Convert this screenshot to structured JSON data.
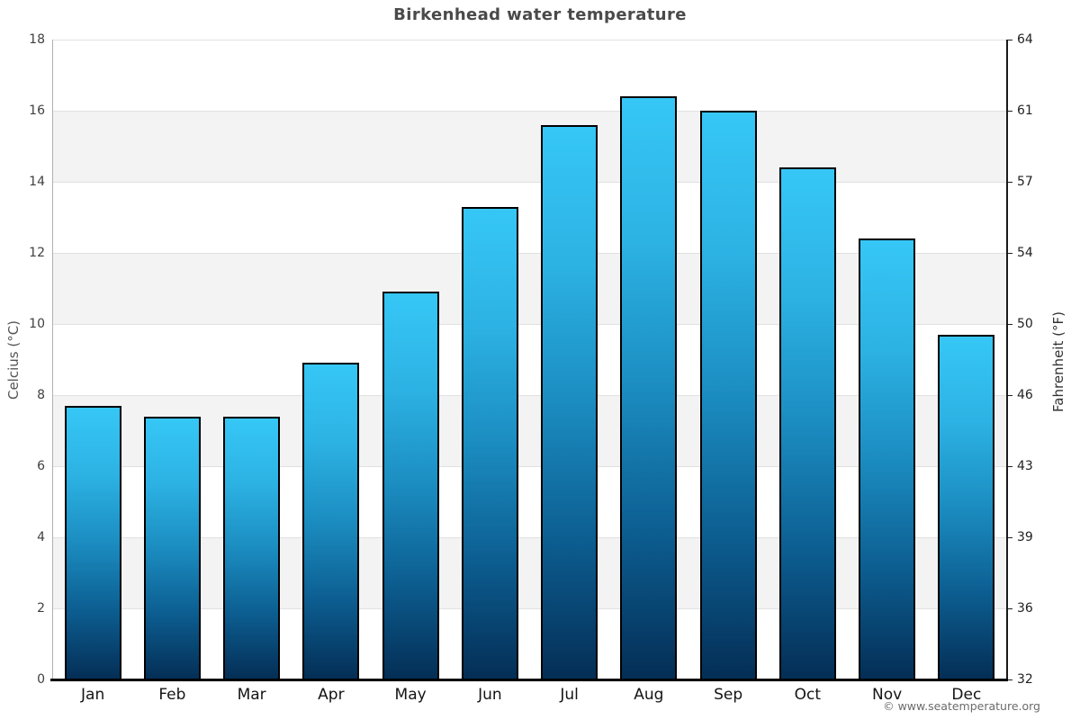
{
  "chart_data": {
    "type": "bar",
    "title": "Birkenhead water temperature",
    "categories": [
      "Jan",
      "Feb",
      "Mar",
      "Apr",
      "May",
      "Jun",
      "Jul",
      "Aug",
      "Sep",
      "Oct",
      "Nov",
      "Dec"
    ],
    "values": [
      7.7,
      7.4,
      7.4,
      8.9,
      10.9,
      13.3,
      15.6,
      16.4,
      16.0,
      14.4,
      12.4,
      9.7
    ],
    "unit": "°C",
    "ylabel_left": "Celcius (°C)",
    "ylabel_right": "Fahrenheit (°F)",
    "ylim": [
      0,
      18
    ],
    "yticks_left": [
      {
        "value": 0,
        "label": "0"
      },
      {
        "value": 2,
        "label": "2"
      },
      {
        "value": 4,
        "label": "4"
      },
      {
        "value": 6,
        "label": "6"
      },
      {
        "value": 8,
        "label": "8"
      },
      {
        "value": 10,
        "label": "10"
      },
      {
        "value": 12,
        "label": "12"
      },
      {
        "value": 14,
        "label": "14"
      },
      {
        "value": 16,
        "label": "16"
      },
      {
        "value": 18,
        "label": "18"
      }
    ],
    "yticks_right": [
      {
        "value": 0,
        "label": "32"
      },
      {
        "value": 2,
        "label": "36"
      },
      {
        "value": 4,
        "label": "39"
      },
      {
        "value": 6,
        "label": "43"
      },
      {
        "value": 8,
        "label": "46"
      },
      {
        "value": 10,
        "label": "50"
      },
      {
        "value": 12,
        "label": "54"
      },
      {
        "value": 14,
        "label": "57"
      },
      {
        "value": 16,
        "label": "61"
      },
      {
        "value": 18,
        "label": "64"
      }
    ],
    "grid": "horizontal alternating bands every 2°C, gridline at each even value",
    "legend": "none"
  },
  "footer": {
    "credit": "© www.seatemperature.org"
  },
  "colors": {
    "bar_gradient": [
      "#36c7f6",
      "#2cb2e3",
      "#1b8cc0",
      "#0c5d90",
      "#042e55"
    ],
    "bar_border": "#000000",
    "band_gray": "#f3f3f3",
    "band_white": "#ffffff",
    "gridline": "#e1e1e1",
    "axis_left_line": "#b0b0b0",
    "axis_right_line": "#1a1a1a",
    "axis_bottom_line": "#000000",
    "title_text": "#4a4a4a",
    "month_text": "#141414",
    "footer_text": "#6b6b6b"
  }
}
